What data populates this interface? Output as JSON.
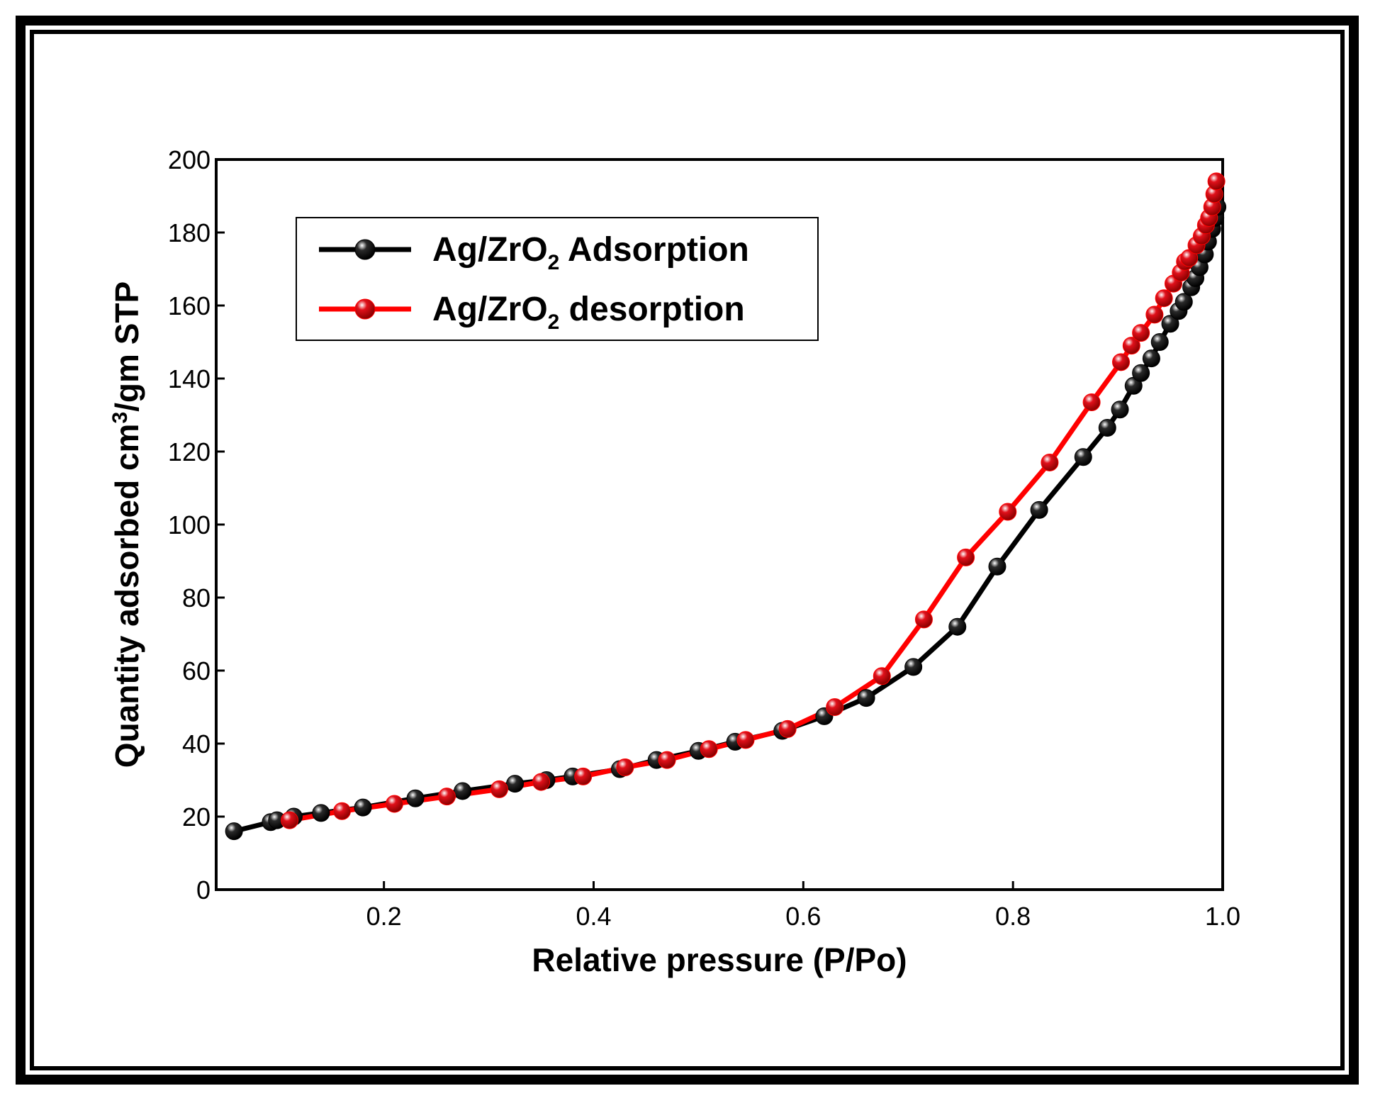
{
  "chart_data": {
    "type": "line",
    "title": "",
    "xlabel": "Relative pressure (P/Po)",
    "ylabel": {
      "main": "Quantity adsorbed cm",
      "sup": "3",
      "rest": "/gm STP"
    },
    "xlim": [
      0.04,
      1.0
    ],
    "ylim": [
      0,
      200
    ],
    "xticks": [
      0.2,
      0.4,
      0.6,
      0.8,
      1.0
    ],
    "xtick_labels": [
      "0.2",
      "0.4",
      "0.6",
      "0.8",
      "1.0"
    ],
    "yticks": [
      0,
      20,
      40,
      60,
      80,
      100,
      120,
      140,
      160,
      180,
      200
    ],
    "ytick_labels": [
      "0",
      "20",
      "40",
      "60",
      "80",
      "100",
      "120",
      "140",
      "160",
      "180",
      "200"
    ],
    "legend_position": "top-left",
    "series": [
      {
        "name": "Ag/ZrO2 Adsorption",
        "label_parts": {
          "pre": "Ag/ZrO",
          "sub": "2",
          "post": " Adsorption"
        },
        "color": "#000000",
        "marker_fill": "#2a2a2a",
        "x": [
          0.057,
          0.092,
          0.098,
          0.114,
          0.14,
          0.18,
          0.23,
          0.275,
          0.325,
          0.355,
          0.38,
          0.425,
          0.46,
          0.5,
          0.535,
          0.58,
          0.62,
          0.66,
          0.705,
          0.747,
          0.785,
          0.825,
          0.867,
          0.89,
          0.902,
          0.915,
          0.922,
          0.932,
          0.94,
          0.95,
          0.958,
          0.963,
          0.97,
          0.974,
          0.978,
          0.983,
          0.986,
          0.99,
          0.993,
          0.995
        ],
        "y": [
          16,
          18.5,
          19,
          20,
          21,
          22.5,
          25,
          27,
          29,
          30,
          31,
          33,
          35.5,
          38,
          40.5,
          43.5,
          47.5,
          52.5,
          61,
          72,
          88.5,
          104,
          118.5,
          126.5,
          131.5,
          138,
          141.5,
          145.5,
          150,
          155,
          158.5,
          161,
          165,
          167.5,
          170.5,
          174,
          177.5,
          181,
          184,
          187
        ]
      },
      {
        "name": "Ag/ZrO2 desorption",
        "label_parts": {
          "pre": "Ag/ZrO",
          "sub": "2",
          "post": " desorption"
        },
        "color": "#ff0000",
        "marker_fill": "#e0101a",
        "x": [
          0.11,
          0.16,
          0.21,
          0.26,
          0.31,
          0.35,
          0.39,
          0.43,
          0.47,
          0.51,
          0.545,
          0.585,
          0.63,
          0.675,
          0.715,
          0.755,
          0.795,
          0.835,
          0.875,
          0.903,
          0.913,
          0.922,
          0.935,
          0.944,
          0.953,
          0.96,
          0.964,
          0.968,
          0.975,
          0.98,
          0.984,
          0.987,
          0.99,
          0.992,
          0.994
        ],
        "y": [
          19,
          21.5,
          23.5,
          25.5,
          27.5,
          29.5,
          31,
          33.5,
          35.5,
          38.5,
          41,
          44,
          50,
          58.5,
          74,
          91,
          103.5,
          117,
          133.5,
          144.5,
          149,
          152.5,
          157.5,
          162,
          166,
          169,
          172,
          173,
          176.5,
          179,
          182,
          184,
          187,
          190.5,
          194
        ]
      }
    ]
  }
}
